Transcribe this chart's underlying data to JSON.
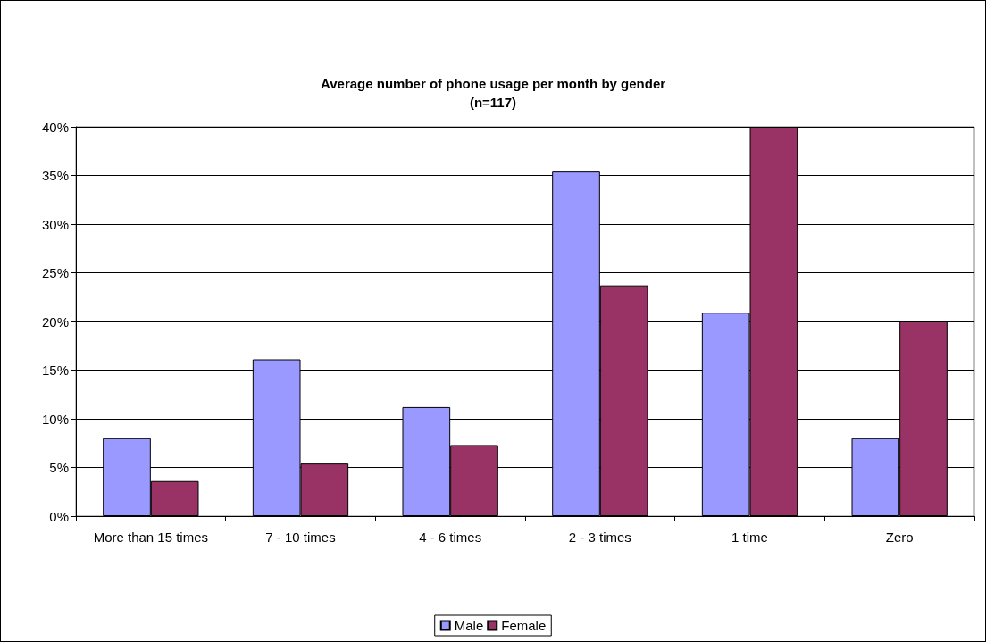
{
  "chart_data": {
    "type": "bar",
    "title": "Average number of phone usage per month by gender",
    "subtitle": "(n=117)",
    "categories": [
      "More than 15 times",
      "7 - 10 times",
      "4 - 6 times",
      "2 - 3 times",
      "1 time",
      "Zero"
    ],
    "series": [
      {
        "name": "Male",
        "color": "#9999ff",
        "values": [
          8.0,
          16.1,
          11.2,
          35.4,
          20.9,
          8.0
        ]
      },
      {
        "name": "Female",
        "color": "#993366",
        "values": [
          3.6,
          5.4,
          7.3,
          23.7,
          40.0,
          20.0
        ]
      }
    ],
    "ylim": [
      0,
      40
    ],
    "yticks": [
      {
        "value": 0,
        "label": "0%"
      },
      {
        "value": 5,
        "label": "5%"
      },
      {
        "value": 10,
        "label": "10%"
      },
      {
        "value": 15,
        "label": "15%"
      },
      {
        "value": 20,
        "label": "20%"
      },
      {
        "value": 25,
        "label": "25%"
      },
      {
        "value": 30,
        "label": "30%"
      },
      {
        "value": 35,
        "label": "35%"
      },
      {
        "value": 40,
        "label": "40%"
      }
    ],
    "grid": "y",
    "legend": "bottom"
  }
}
